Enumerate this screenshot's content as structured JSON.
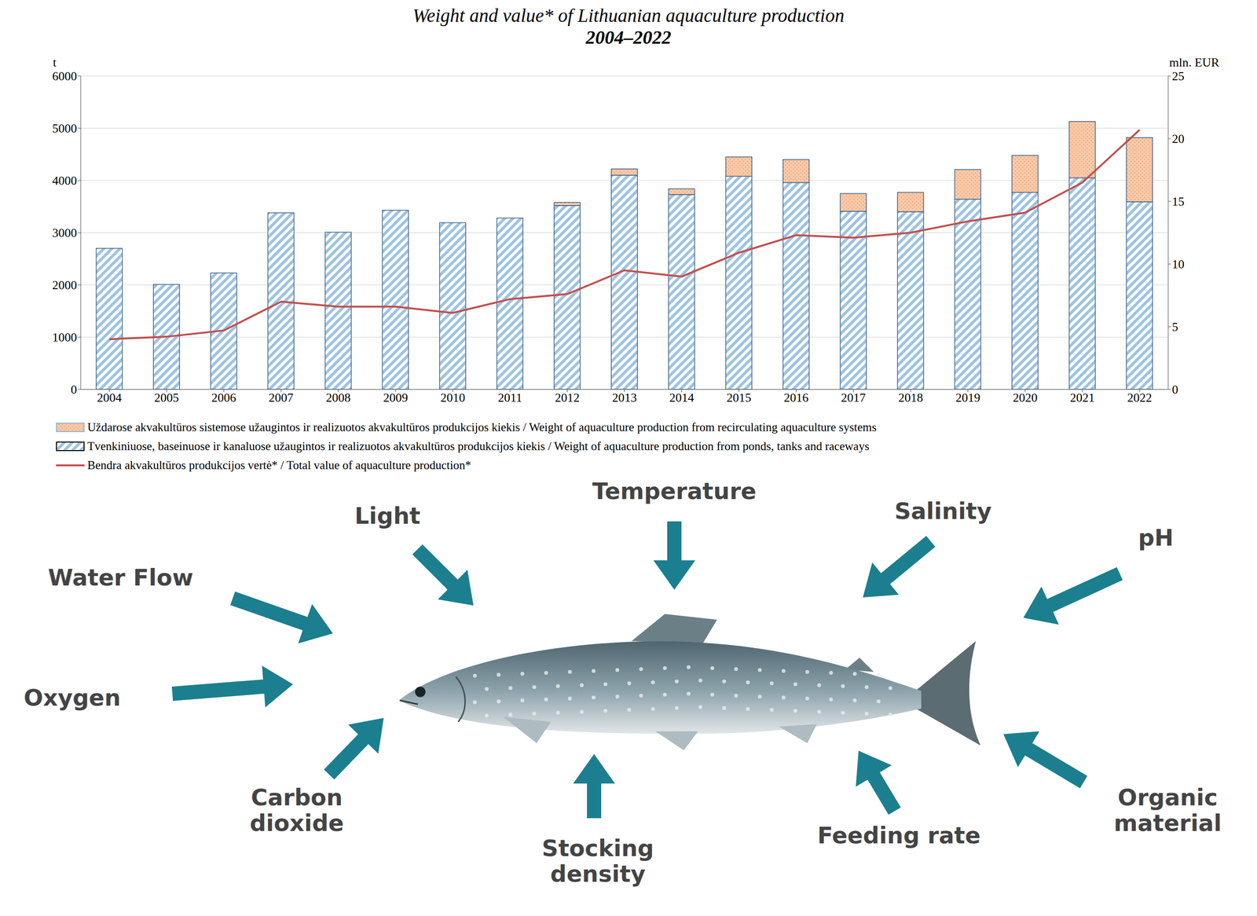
{
  "chart_data": {
    "type": "bar",
    "title": "Weight and value* of Lithuanian aquaculture production",
    "subtitle": "2004–2022",
    "y_label": "t",
    "y2_label": "mln. EUR",
    "categories": [
      "2004",
      "2005",
      "2006",
      "2007",
      "2008",
      "2009",
      "2010",
      "2011",
      "2012",
      "2013",
      "2014",
      "2015",
      "2016",
      "2017",
      "2018",
      "2019",
      "2020",
      "2021",
      "2022"
    ],
    "series": [
      {
        "name": "Uždarose akvakultūros sistemose užaugintos ir realizuotos akvakultūros produkcijos kiekis / Weight of aquaculture production from recirculating aquaculture systems",
        "type": "bar",
        "color": "#f9c9a8",
        "values": [
          0,
          0,
          0,
          0,
          0,
          0,
          0,
          0,
          60,
          120,
          110,
          370,
          440,
          340,
          370,
          570,
          710,
          1080,
          1230
        ]
      },
      {
        "name": "Tvenkiniuose, baseinuose ir kanaluose užaugintos ir realizuotos akvakultūros produkcijos kiekis / Weight of aquaculture production from ponds, tanks and raceways",
        "type": "bar",
        "color": "#9cc3e4",
        "values": [
          2700,
          2010,
          2230,
          3380,
          3010,
          3430,
          3190,
          3280,
          3520,
          4100,
          3730,
          4080,
          3960,
          3410,
          3400,
          3640,
          3770,
          4050,
          3590
        ]
      },
      {
        "name": "Bendra akvakultūros produkcijos vertė* / Total value of aquaculture production*",
        "type": "line",
        "axis": "y2",
        "color": "#c0504d",
        "values": [
          4.0,
          4.2,
          4.7,
          7.0,
          6.6,
          6.6,
          6.1,
          7.2,
          7.6,
          9.5,
          9.0,
          10.9,
          12.3,
          12.1,
          12.5,
          13.4,
          14.1,
          16.5,
          20.7
        ]
      }
    ],
    "ylim": [
      0,
      6000
    ],
    "yticks": [
      0,
      1000,
      2000,
      3000,
      4000,
      5000,
      6000
    ],
    "y2lim": [
      0,
      25
    ],
    "y2ticks": [
      0,
      5,
      10,
      15,
      20,
      25
    ],
    "stacked": true,
    "grid": true,
    "legend": "bottom"
  },
  "diagram": {
    "factors": [
      "Temperature",
      "Light",
      "Salinity",
      "pH",
      "Water Flow",
      "Oxygen",
      "Carbon dioxide",
      "Stocking density",
      "Feeding rate",
      "Organic material"
    ]
  }
}
